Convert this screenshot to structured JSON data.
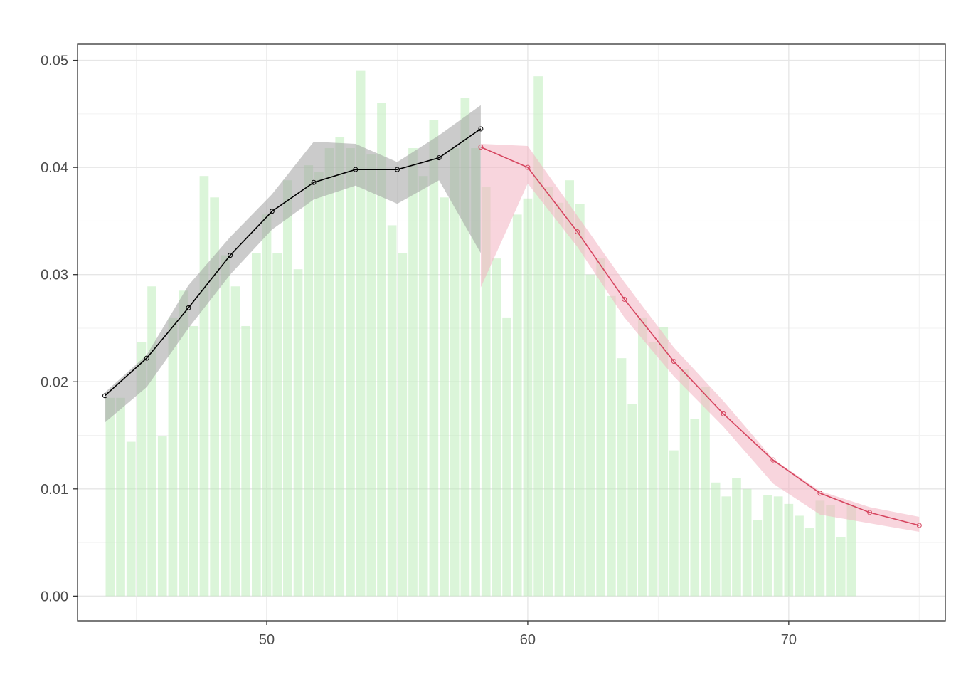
{
  "chart_data": {
    "type": "bar",
    "title": "",
    "xlabel": "",
    "ylabel": "",
    "xlim": [
      42.75,
      76.0
    ],
    "ylim": [
      -0.0023,
      0.0515
    ],
    "grid": true,
    "x_ticks": [
      {
        "value": 50,
        "label": "50"
      },
      {
        "value": 60,
        "label": "60"
      },
      {
        "value": 70,
        "label": "70"
      }
    ],
    "y_ticks": [
      {
        "value": 0.0,
        "label": "0.00"
      },
      {
        "value": 0.01,
        "label": "0.01"
      },
      {
        "value": 0.02,
        "label": "0.02"
      },
      {
        "value": 0.03,
        "label": "0.03"
      },
      {
        "value": 0.04,
        "label": "0.04"
      },
      {
        "value": 0.05,
        "label": "0.05"
      }
    ],
    "histogram": {
      "color": "#b8ecb3",
      "x_start": 43.8,
      "bin_width": 0.4,
      "values": [
        0.0185,
        0.0185,
        0.0144,
        0.0237,
        0.0289,
        0.0149,
        0.026,
        0.0285,
        0.0252,
        0.0392,
        0.0372,
        0.0318,
        0.0289,
        0.0252,
        0.032,
        0.0356,
        0.032,
        0.0388,
        0.0305,
        0.0402,
        0.0396,
        0.0418,
        0.0428,
        0.0418,
        0.049,
        0.0412,
        0.046,
        0.0346,
        0.032,
        0.0418,
        0.0392,
        0.0444,
        0.0372,
        0.0418,
        0.0465,
        0.0418,
        0.0382,
        0.0315,
        0.026,
        0.0356,
        0.0371,
        0.0485,
        0.0382,
        0.0367,
        0.0388,
        0.0366,
        0.03,
        0.0315,
        0.028,
        0.0222,
        0.0179,
        0.026,
        0.0237,
        0.0251,
        0.0136,
        0.0212,
        0.0165,
        0.0195,
        0.0106,
        0.0093,
        0.011,
        0.01,
        0.0071,
        0.0094,
        0.0093,
        0.0086,
        0.0075,
        0.0064,
        0.0089,
        0.0085,
        0.0055,
        0.0085
      ]
    },
    "series": [
      {
        "color": "#000000",
        "band_color": "#a0a0a0",
        "x": [
          43.8,
          45.4,
          47.0,
          48.6,
          50.2,
          51.8,
          53.4,
          55.0,
          56.6,
          58.2
        ],
        "values": [
          0.0187,
          0.0222,
          0.0269,
          0.0318,
          0.0359,
          0.0386,
          0.0398,
          0.0398,
          0.0409,
          0.0436
        ],
        "lower": [
          0.0162,
          0.0195,
          0.025,
          0.03,
          0.0342,
          0.037,
          0.0383,
          0.0366,
          0.0388,
          0.032
        ],
        "upper": [
          0.019,
          0.0225,
          0.029,
          0.0335,
          0.0375,
          0.0424,
          0.0422,
          0.0405,
          0.043,
          0.0458
        ]
      },
      {
        "color": "#d6455f",
        "band_color": "#f2b3c1",
        "x": [
          58.2,
          60.0,
          61.9,
          63.7,
          65.6,
          67.5,
          69.4,
          71.2,
          73.1,
          75.0
        ],
        "values": [
          0.0419,
          0.04,
          0.034,
          0.0277,
          0.0219,
          0.017,
          0.0127,
          0.0096,
          0.0078,
          0.0066
        ],
        "lower": [
          0.0288,
          0.0385,
          0.0326,
          0.026,
          0.0205,
          0.0158,
          0.0105,
          0.0076,
          0.0068,
          0.006
        ],
        "upper": [
          0.0422,
          0.042,
          0.0355,
          0.0293,
          0.0232,
          0.0182,
          0.0128,
          0.0098,
          0.0083,
          0.0074
        ]
      }
    ]
  }
}
